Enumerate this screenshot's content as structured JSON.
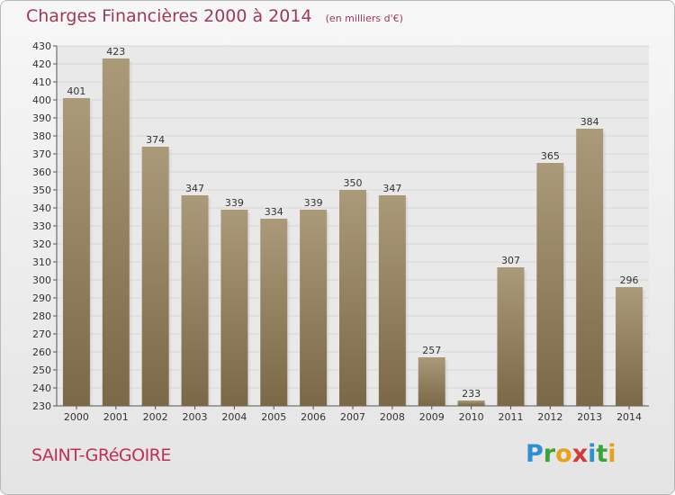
{
  "header": {
    "title": "Charges Financières 2000 à 2014",
    "unit": "(en milliers d'€)"
  },
  "footer": {
    "city": "SAINT-GRéGOIRE",
    "logo_letters": [
      {
        "char": "P",
        "color": "#2f8fd0"
      },
      {
        "char": "r",
        "color": "#3aa33a"
      },
      {
        "char": "o",
        "color": "#e8a21a"
      },
      {
        "char": "x",
        "color": "#d23a3a"
      },
      {
        "char": "i",
        "color": "#2f8fd0"
      },
      {
        "char": "t",
        "color": "#3aa33a"
      },
      {
        "char": "i",
        "color": "#e8a21a"
      }
    ]
  },
  "colors": {
    "bar_light": "#ab9a79",
    "bar_dark": "#7a6846",
    "grid": "#d8d8d8",
    "title": "#9e3a52",
    "city": "#c22f55"
  },
  "chart_data": {
    "type": "bar",
    "categories": [
      "2000",
      "2001",
      "2002",
      "2003",
      "2004",
      "2005",
      "2006",
      "2007",
      "2008",
      "2009",
      "2010",
      "2011",
      "2012",
      "2013",
      "2014"
    ],
    "values": [
      401,
      423,
      374,
      347,
      339,
      334,
      339,
      350,
      347,
      257,
      233,
      307,
      365,
      384,
      296
    ],
    "ylim": [
      230,
      430
    ],
    "yticks": [
      230,
      240,
      250,
      260,
      270,
      280,
      290,
      300,
      310,
      320,
      330,
      340,
      350,
      360,
      370,
      380,
      390,
      400,
      410,
      420,
      430
    ],
    "grid": true
  }
}
